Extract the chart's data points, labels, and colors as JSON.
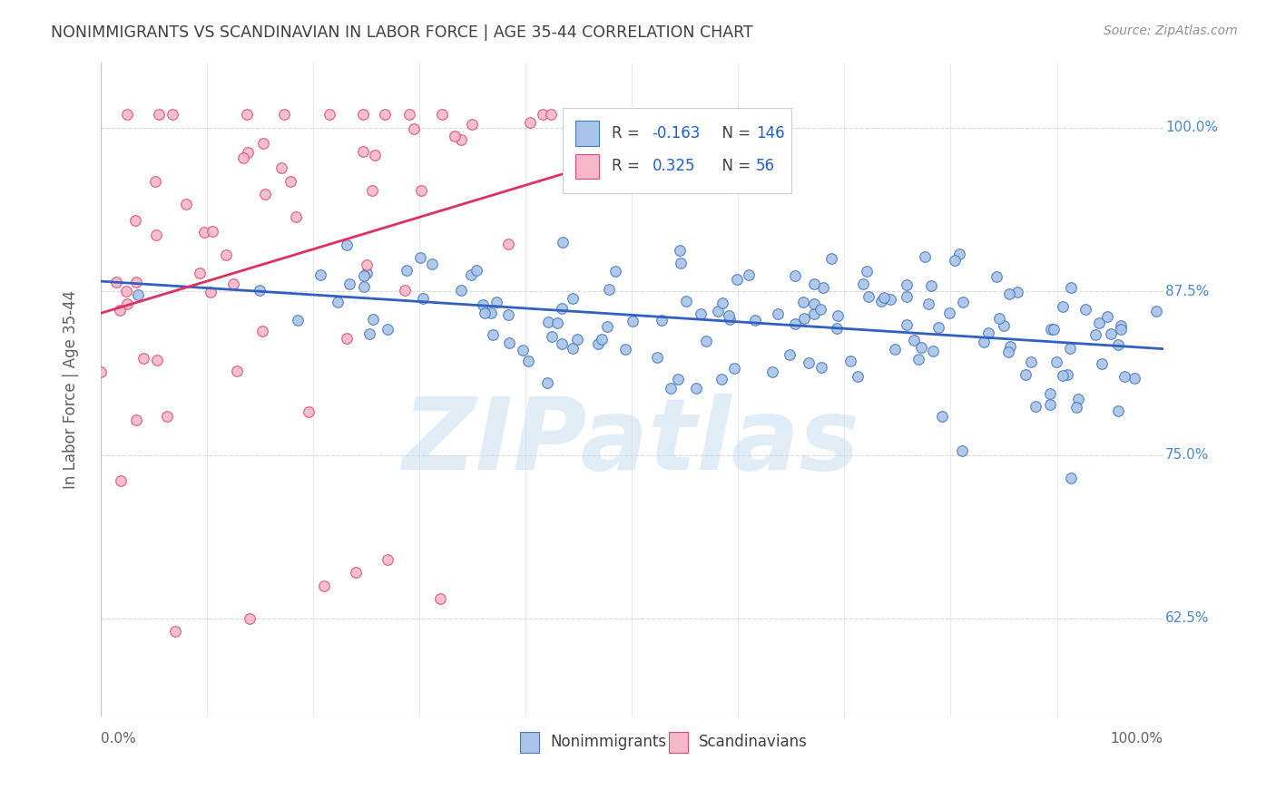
{
  "title": "NONIMMIGRANTS VS SCANDINAVIAN IN LABOR FORCE | AGE 35-44 CORRELATION CHART",
  "source": "Source: ZipAtlas.com",
  "ylabel": "In Labor Force | Age 35-44",
  "yticks": [
    0.625,
    0.75,
    0.875,
    1.0
  ],
  "ytick_labels": [
    "62.5%",
    "75.0%",
    "87.5%",
    "100.0%"
  ],
  "xlim": [
    0.0,
    1.0
  ],
  "ylim": [
    0.55,
    1.05
  ],
  "blue_R": "-0.163",
  "blue_N": "146",
  "pink_R": "0.325",
  "pink_N": "56",
  "blue_fill": "#a8c4e8",
  "pink_fill": "#f4b8c8",
  "blue_edge": "#4878c0",
  "pink_edge": "#e04878",
  "blue_line": "#3060c0",
  "pink_line": "#e03060",
  "legend_blue_label": "Nonimmigrants",
  "legend_pink_label": "Scandinavians",
  "watermark_color": "#c8ddf0",
  "background_color": "#ffffff",
  "grid_color": "#d8d8d8",
  "title_color": "#404040",
  "source_color": "#909090",
  "right_tick_color": "#4888d0",
  "left_tick_color": "#606060"
}
